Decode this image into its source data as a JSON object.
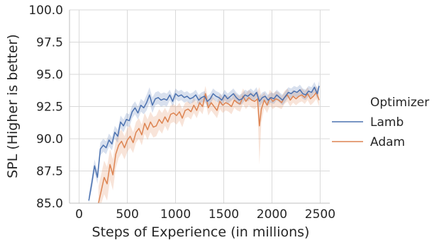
{
  "chart_data": {
    "type": "line",
    "xlabel": "Steps of Experience (in millions)",
    "ylabel": "SPL (Higher is better)",
    "xlim": [
      -100,
      2600
    ],
    "ylim": [
      85.0,
      100.0
    ],
    "xticks": [
      0,
      500,
      1000,
      1500,
      2000,
      2500
    ],
    "yticks": [
      85.0,
      87.5,
      90.0,
      92.5,
      95.0,
      97.5,
      100.0
    ],
    "ytick_labels": [
      "85.0",
      "87.5",
      "90.0",
      "92.5",
      "95.0",
      "97.5",
      "100.0"
    ],
    "grid": true,
    "legend": {
      "title": "Optimizer",
      "placement": "right"
    },
    "series": [
      {
        "name": "Lamb",
        "color": "#4c72b0",
        "band_color": "#4c72b0",
        "x": [
          100,
          130,
          160,
          190,
          220,
          250,
          280,
          310,
          340,
          370,
          400,
          430,
          460,
          490,
          520,
          550,
          580,
          610,
          640,
          670,
          700,
          730,
          760,
          790,
          820,
          850,
          880,
          910,
          940,
          970,
          1000,
          1030,
          1060,
          1090,
          1120,
          1150,
          1180,
          1210,
          1240,
          1270,
          1300,
          1330,
          1360,
          1390,
          1420,
          1450,
          1480,
          1510,
          1540,
          1570,
          1600,
          1630,
          1660,
          1690,
          1720,
          1750,
          1780,
          1810,
          1840,
          1870,
          1900,
          1930,
          1960,
          1990,
          2020,
          2050,
          2080,
          2110,
          2140,
          2170,
          2200,
          2230,
          2260,
          2290,
          2320,
          2350,
          2380,
          2410,
          2440,
          2470,
          2490
        ],
        "values": [
          85.2,
          86.5,
          87.9,
          87.0,
          89.2,
          89.5,
          89.3,
          89.9,
          89.6,
          90.5,
          90.2,
          91.3,
          91.0,
          91.5,
          91.4,
          92.1,
          92.4,
          92.0,
          92.6,
          92.4,
          92.8,
          93.4,
          92.6,
          93.1,
          93.2,
          93.0,
          93.1,
          93.0,
          93.4,
          92.9,
          93.5,
          93.3,
          93.4,
          93.2,
          93.3,
          93.1,
          93.2,
          93.4,
          93.0,
          93.2,
          93.3,
          92.9,
          93.1,
          93.5,
          93.3,
          93.2,
          93.0,
          93.4,
          93.1,
          93.3,
          93.5,
          93.2,
          93.0,
          93.1,
          93.4,
          93.3,
          93.5,
          93.3,
          93.6,
          92.9,
          93.2,
          93.3,
          93.0,
          93.2,
          93.1,
          93.4,
          93.2,
          93.0,
          93.3,
          93.6,
          93.5,
          93.7,
          93.6,
          93.8,
          93.5,
          93.4,
          93.7,
          93.6,
          94.0,
          93.5,
          94.1
        ],
        "band": [
          0.5,
          0.5,
          0.5,
          0.5,
          0.5,
          0.5,
          0.5,
          0.5,
          0.5,
          0.5,
          0.5,
          0.5,
          0.5,
          0.5,
          0.5,
          0.5,
          0.5,
          0.5,
          0.5,
          0.5,
          0.6,
          0.6,
          0.6,
          0.5,
          0.5,
          0.5,
          0.5,
          0.5,
          0.4,
          0.4,
          0.4,
          0.4,
          0.4,
          0.4,
          0.4,
          0.4,
          0.4,
          0.4,
          0.4,
          0.4,
          0.4,
          0.4,
          0.4,
          0.4,
          0.4,
          0.4,
          0.4,
          0.4,
          0.4,
          0.4,
          0.4,
          0.4,
          0.4,
          0.4,
          0.4,
          0.4,
          0.4,
          0.4,
          0.4,
          0.4,
          0.4,
          0.4,
          0.4,
          0.4,
          0.4,
          0.4,
          0.4,
          0.4,
          0.4,
          0.4,
          0.4,
          0.4,
          0.4,
          0.4,
          0.4,
          0.4,
          0.4,
          0.4,
          0.4,
          0.4,
          0.4
        ]
      },
      {
        "name": "Adam",
        "color": "#dd8452",
        "band_color": "#dd8452",
        "x": [
          200,
          230,
          260,
          290,
          320,
          350,
          380,
          410,
          440,
          470,
          500,
          530,
          560,
          590,
          620,
          650,
          680,
          710,
          740,
          770,
          800,
          830,
          860,
          890,
          920,
          950,
          980,
          1010,
          1040,
          1070,
          1100,
          1130,
          1160,
          1190,
          1220,
          1250,
          1280,
          1310,
          1340,
          1370,
          1400,
          1430,
          1460,
          1490,
          1520,
          1550,
          1580,
          1610,
          1640,
          1670,
          1700,
          1730,
          1760,
          1790,
          1820,
          1850,
          1870,
          1890,
          1920,
          1950,
          1980,
          2010,
          2040,
          2070,
          2100,
          2130,
          2160,
          2190,
          2220,
          2250,
          2280,
          2310,
          2340,
          2370,
          2400,
          2430,
          2460,
          2490
        ],
        "values": [
          85.0,
          86.0,
          87.0,
          86.5,
          88.0,
          87.2,
          88.8,
          89.5,
          89.8,
          89.3,
          89.9,
          90.2,
          89.7,
          90.5,
          90.8,
          90.3,
          91.2,
          90.7,
          91.3,
          90.9,
          91.0,
          91.5,
          91.2,
          91.7,
          91.3,
          91.9,
          92.0,
          91.8,
          92.1,
          91.6,
          92.2,
          92.3,
          92.1,
          92.6,
          92.2,
          92.8,
          92.5,
          93.5,
          92.4,
          92.8,
          92.5,
          92.2,
          92.9,
          92.6,
          92.8,
          92.7,
          92.5,
          93.0,
          92.8,
          92.7,
          93.3,
          92.9,
          93.2,
          93.0,
          92.9,
          93.1,
          91.0,
          92.3,
          93.0,
          92.6,
          93.2,
          92.9,
          93.1,
          93.0,
          92.8,
          93.2,
          93.4,
          93.0,
          93.3,
          93.1,
          93.3,
          93.4,
          93.2,
          93.5,
          93.1,
          93.3,
          93.6,
          93.0
        ],
        "band": [
          1.3,
          1.3,
          1.3,
          1.3,
          1.2,
          1.2,
          1.1,
          1.0,
          0.9,
          0.9,
          0.9,
          0.9,
          0.8,
          0.8,
          0.8,
          0.8,
          0.8,
          0.8,
          0.8,
          0.8,
          0.8,
          0.8,
          0.8,
          0.7,
          0.7,
          0.7,
          0.7,
          0.7,
          0.7,
          0.7,
          0.6,
          0.6,
          0.6,
          0.6,
          0.6,
          0.6,
          0.6,
          0.6,
          0.6,
          0.6,
          0.6,
          0.6,
          0.6,
          0.6,
          0.6,
          0.6,
          0.6,
          0.6,
          0.6,
          0.6,
          0.6,
          0.6,
          0.6,
          0.6,
          0.6,
          0.6,
          3.0,
          1.0,
          0.6,
          0.6,
          0.6,
          0.6,
          0.6,
          0.6,
          0.5,
          0.5,
          0.5,
          0.5,
          0.5,
          0.5,
          0.5,
          0.5,
          0.5,
          0.5,
          0.5,
          0.5,
          0.5,
          0.5
        ]
      }
    ]
  }
}
